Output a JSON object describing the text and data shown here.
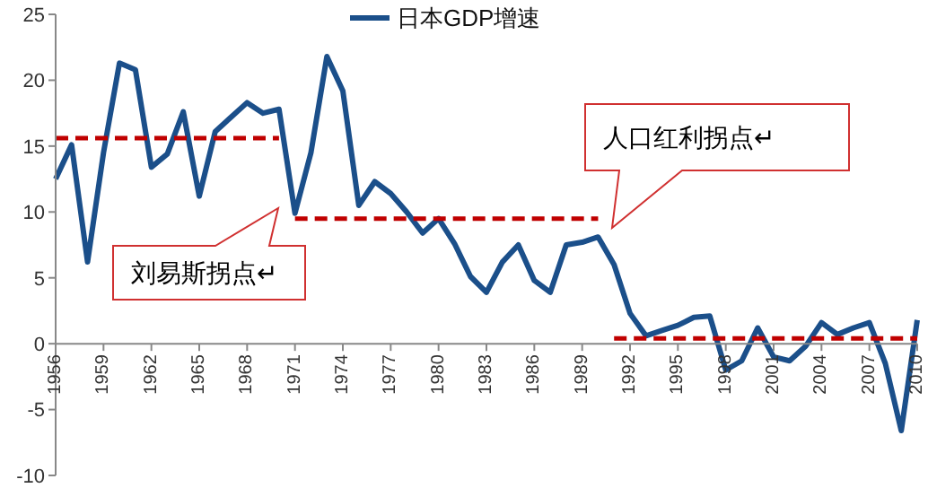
{
  "chart_data": {
    "type": "line",
    "categories": [
      "1956",
      null,
      null,
      "1959",
      null,
      null,
      "1962",
      null,
      null,
      "1965",
      null,
      null,
      "1968",
      null,
      null,
      "1971",
      null,
      null,
      "1974",
      null,
      null,
      "1977",
      null,
      null,
      "1980",
      null,
      null,
      "1983",
      null,
      null,
      "1986",
      null,
      null,
      "1989",
      null,
      null,
      "1992",
      null,
      null,
      "1995",
      null,
      null,
      "1998",
      null,
      null,
      "2001",
      null,
      null,
      "2004",
      null,
      null,
      "2007",
      null,
      null,
      "2010"
    ],
    "series": [
      {
        "name": "日本GDP增速",
        "color": "#1b4f8a",
        "line_style": "solid",
        "values": [
          12.5,
          15.1,
          6.2,
          14.5,
          21.3,
          20.8,
          13.4,
          14.4,
          17.6,
          11.2,
          16.1,
          17.2,
          18.3,
          17.5,
          17.8,
          9.9,
          14.5,
          21.8,
          19.2,
          10.5,
          12.3,
          11.4,
          10.0,
          8.4,
          9.5,
          7.6,
          5.1,
          3.9,
          6.2,
          7.5,
          4.8,
          3.9,
          7.5,
          7.7,
          8.1,
          6.0,
          2.3,
          0.6,
          1.0,
          1.4,
          2.0,
          2.1,
          -2.0,
          -1.3,
          1.2,
          -1.0,
          -1.3,
          -0.2,
          1.6,
          0.7,
          1.2,
          1.6,
          -1.5,
          -6.6,
          1.8
        ]
      },
      {
        "type": "line",
        "color": "#c00000",
        "line_style": "dashed",
        "values": [
          15.6,
          15.6,
          15.6,
          15.6,
          15.6,
          15.6,
          15.6,
          15.6,
          15.6,
          15.6,
          15.6,
          15.6,
          15.6,
          15.6,
          15.6,
          null,
          null,
          null,
          null,
          null,
          null,
          null,
          null,
          null,
          null,
          null,
          null,
          null,
          null,
          null,
          null,
          null,
          null,
          null,
          null,
          null,
          null,
          null,
          null,
          null,
          null,
          null,
          null,
          null,
          null,
          null,
          null,
          null,
          null,
          null,
          null,
          null,
          null,
          null,
          null
        ]
      },
      {
        "type": "line",
        "color": "#c00000",
        "line_style": "dashed",
        "values": [
          null,
          null,
          null,
          null,
          null,
          null,
          null,
          null,
          null,
          null,
          null,
          null,
          null,
          null,
          null,
          9.5,
          9.5,
          9.5,
          9.5,
          9.5,
          9.5,
          9.5,
          9.5,
          9.5,
          9.5,
          9.5,
          9.5,
          9.5,
          9.5,
          9.5,
          9.5,
          9.5,
          9.5,
          9.5,
          9.5,
          null,
          null,
          null,
          null,
          null,
          null,
          null,
          null,
          null,
          null,
          null,
          null,
          null,
          null,
          null,
          null,
          null,
          null,
          null,
          null
        ]
      },
      {
        "type": "line",
        "color": "#c00000",
        "line_style": "dashed",
        "values": [
          null,
          null,
          null,
          null,
          null,
          null,
          null,
          null,
          null,
          null,
          null,
          null,
          null,
          null,
          null,
          null,
          null,
          null,
          null,
          null,
          null,
          null,
          null,
          null,
          null,
          null,
          null,
          null,
          null,
          null,
          null,
          null,
          null,
          null,
          null,
          0.4,
          0.4,
          0.4,
          0.4,
          0.4,
          0.4,
          0.4,
          0.4,
          0.4,
          0.4,
          0.4,
          0.4,
          0.4,
          0.4,
          0.4,
          0.4,
          0.4,
          0.4,
          0.4,
          0.4
        ]
      }
    ],
    "ylim": [
      -10,
      25
    ],
    "yticks": [
      -10,
      -5,
      0,
      5,
      10,
      15,
      20,
      25
    ],
    "legend": "top",
    "marker": "none",
    "annotations": [
      "刘易斯拐点↵",
      "人口红利拐点↵"
    ]
  }
}
